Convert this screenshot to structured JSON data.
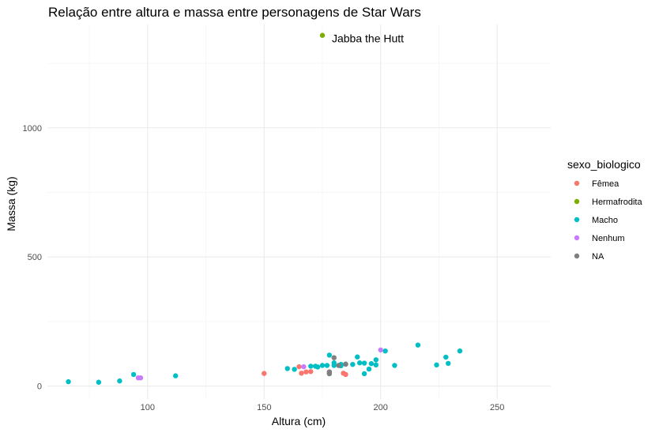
{
  "chart_data": {
    "type": "scatter",
    "title": "Relação entre altura e massa entre personagens de Star Wars",
    "xlabel": "Altura (cm)",
    "ylabel": "Massa (kg)",
    "xlim": [
      57,
      273
    ],
    "ylim": [
      -50,
      1400
    ],
    "xticks": [
      100,
      150,
      200,
      250
    ],
    "yticks": [
      0,
      500,
      1000
    ],
    "xtick_labels": [
      "100",
      "150",
      "200",
      "250"
    ],
    "ytick_labels": [
      "0",
      "500",
      "1000"
    ],
    "grid": true,
    "legend": {
      "title": "sexo_biologico",
      "position": "right"
    },
    "annotation": {
      "text": "Jabba the Hutt",
      "x": 175,
      "y": 1358
    },
    "series": [
      {
        "name": "Fêmea",
        "color": "#F8766D",
        "points": [
          [
            150,
            49
          ],
          [
            165,
            75
          ],
          [
            166,
            50
          ],
          [
            168,
            55
          ],
          [
            170,
            56.2
          ],
          [
            184,
            50
          ],
          [
            185,
            45
          ],
          [
            178,
            55
          ]
        ]
      },
      {
        "name": "Hermafrodita",
        "color": "#7CAE00",
        "points": [
          [
            175,
            1358
          ]
        ]
      },
      {
        "name": "Macho",
        "color": "#00BFC4",
        "points": [
          [
            66,
            17
          ],
          [
            79,
            15
          ],
          [
            88,
            20
          ],
          [
            94,
            45
          ],
          [
            112,
            40
          ],
          [
            160,
            68
          ],
          [
            163,
            65
          ],
          [
            170,
            77
          ],
          [
            172,
            77
          ],
          [
            173,
            74
          ],
          [
            175,
            80
          ],
          [
            177,
            80
          ],
          [
            178,
            120
          ],
          [
            180,
            80
          ],
          [
            182,
            80
          ],
          [
            183,
            84
          ],
          [
            185,
            85
          ],
          [
            188,
            84
          ],
          [
            190,
            113
          ],
          [
            191,
            90
          ],
          [
            193,
            89
          ],
          [
            193,
            48
          ],
          [
            195,
            66
          ],
          [
            196,
            87
          ],
          [
            198,
            82
          ],
          [
            198,
            102
          ],
          [
            202,
            136
          ],
          [
            206,
            80
          ],
          [
            216,
            159
          ],
          [
            224,
            82
          ],
          [
            228,
            112
          ],
          [
            229,
            88
          ],
          [
            234,
            136
          ],
          [
            180,
            90
          ],
          [
            183,
            79
          ],
          [
            178,
            48
          ]
        ]
      },
      {
        "name": "Nenhum",
        "color": "#C77CFF",
        "points": [
          [
            96,
            32
          ],
          [
            97,
            32
          ],
          [
            167,
            75
          ],
          [
            200,
            140
          ]
        ]
      },
      {
        "name": "NA",
        "color": "#7F7F7F",
        "points": [
          [
            180,
            110
          ],
          [
            185,
            85
          ],
          [
            178,
            55
          ],
          [
            178,
            48
          ],
          [
            182,
            80
          ]
        ]
      }
    ]
  }
}
